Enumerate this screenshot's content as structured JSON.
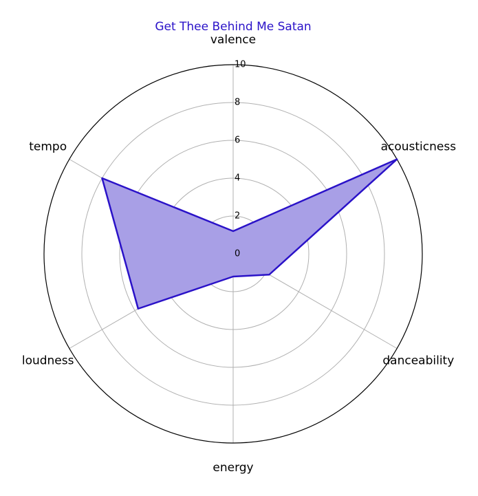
{
  "chart_data": {
    "type": "radar",
    "title": "Get Thee Behind Me Satan",
    "axes": [
      "valence",
      "acousticness",
      "danceability",
      "energy",
      "loudness",
      "tempo"
    ],
    "series": [
      {
        "values": [
          1.2,
          10.0,
          2.2,
          1.2,
          5.8,
          8.0
        ]
      }
    ],
    "rlim": [
      0,
      10
    ],
    "rticks": [
      0,
      2,
      4,
      6,
      8,
      10
    ],
    "grid": true,
    "colors": {
      "line": "#2a12c8",
      "fill": "#a89fe6",
      "title": "#2a12c8"
    }
  }
}
